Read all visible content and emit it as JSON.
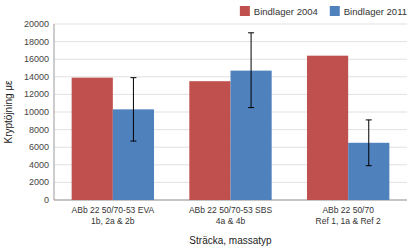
{
  "chart_data": {
    "type": "bar",
    "categories": [
      "ABb 22 50/70-53 EVA\n1b, 2a & 2b",
      "ABb 22 50/70-53 SBS\n4a & 4b",
      "ABb 22 50/70\nRef 1, 1a & Ref 2"
    ],
    "series": [
      {
        "name": "Bindlager 2004",
        "color": "#c0504d",
        "values": [
          13900,
          13500,
          16400
        ]
      },
      {
        "name": "Bindlager 2011",
        "color": "#4f81bd",
        "values": [
          10300,
          14700,
          6500
        ],
        "errors_plus": [
          3600,
          4300,
          2600
        ],
        "errors_minus": [
          3600,
          4200,
          2600
        ]
      }
    ],
    "xlabel": "Sträcka, massatyp",
    "ylabel": "Kryptöjning με",
    "ylim": [
      0,
      20000
    ],
    "yticks": [
      0,
      2000,
      4000,
      6000,
      8000,
      10000,
      12000,
      14000,
      16000,
      18000,
      20000
    ],
    "grid": true,
    "legend": "upper right"
  }
}
